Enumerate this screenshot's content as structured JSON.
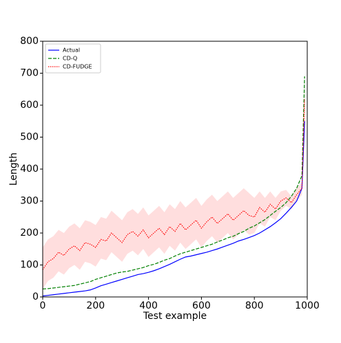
{
  "chart_data": {
    "type": "line",
    "x_label": "Test example",
    "y_label": "Length",
    "x": [
      0,
      20,
      40,
      60,
      80,
      100,
      120,
      140,
      160,
      180,
      200,
      220,
      240,
      260,
      280,
      300,
      320,
      340,
      360,
      380,
      400,
      420,
      440,
      460,
      480,
      500,
      520,
      540,
      560,
      580,
      600,
      620,
      640,
      660,
      680,
      700,
      720,
      740,
      760,
      780,
      800,
      820,
      840,
      860,
      880,
      900,
      920,
      940,
      960,
      980,
      990
    ],
    "xlim": [
      0,
      1000
    ],
    "xticks": [
      0,
      200,
      400,
      600,
      800,
      1000
    ],
    "ylim": [
      0,
      800
    ],
    "yticks": [
      0,
      100,
      200,
      300,
      400,
      500,
      600,
      700,
      800
    ],
    "legend": "upper left",
    "series": [
      {
        "name": "Actual",
        "color": "#0000ff",
        "dash": "solid",
        "values": [
          3,
          5,
          7,
          9,
          11,
          13,
          15,
          17,
          19,
          22,
          28,
          35,
          40,
          45,
          50,
          55,
          60,
          65,
          70,
          73,
          77,
          82,
          88,
          95,
          102,
          110,
          118,
          125,
          128,
          132,
          136,
          140,
          145,
          150,
          156,
          162,
          168,
          175,
          180,
          186,
          192,
          200,
          210,
          220,
          232,
          245,
          262,
          280,
          300,
          340,
          550
        ]
      },
      {
        "name": "CD-Q",
        "color": "#008000",
        "dash": "dashed",
        "values": [
          25,
          26,
          28,
          30,
          32,
          34,
          36,
          40,
          44,
          48,
          55,
          60,
          65,
          70,
          75,
          78,
          80,
          84,
          88,
          92,
          98,
          102,
          108,
          115,
          120,
          128,
          135,
          140,
          145,
          150,
          155,
          160,
          165,
          172,
          178,
          185,
          190,
          198,
          205,
          215,
          222,
          232,
          242,
          255,
          268,
          280,
          295,
          315,
          340,
          380,
          690
        ]
      },
      {
        "name": "CD-FUDGE",
        "color": "#ff0000",
        "dash": "dotted",
        "values": [
          85,
          110,
          120,
          140,
          130,
          150,
          160,
          145,
          170,
          165,
          155,
          180,
          175,
          200,
          185,
          170,
          195,
          205,
          190,
          210,
          185,
          200,
          215,
          195,
          220,
          205,
          230,
          210,
          225,
          240,
          215,
          235,
          250,
          230,
          245,
          260,
          240,
          255,
          270,
          255,
          250,
          280,
          265,
          290,
          275,
          300,
          310,
          295,
          320,
          340,
          620
        ],
        "lower": [
          25,
          50,
          60,
          80,
          70,
          90,
          100,
          85,
          110,
          105,
          95,
          120,
          115,
          140,
          125,
          110,
          135,
          145,
          130,
          150,
          125,
          140,
          155,
          135,
          160,
          145,
          170,
          150,
          165,
          180,
          155,
          175,
          190,
          170,
          185,
          200,
          180,
          195,
          210,
          195,
          200,
          230,
          220,
          250,
          240,
          270,
          285,
          275,
          300,
          320,
          560
        ],
        "upper": [
          155,
          180,
          190,
          210,
          200,
          220,
          230,
          215,
          240,
          235,
          225,
          250,
          245,
          270,
          255,
          240,
          265,
          275,
          260,
          280,
          255,
          270,
          285,
          265,
          290,
          275,
          300,
          280,
          295,
          310,
          285,
          305,
          320,
          300,
          315,
          330,
          310,
          325,
          340,
          325,
          310,
          330,
          310,
          330,
          310,
          330,
          335,
          315,
          340,
          360,
          700
        ]
      }
    ]
  }
}
